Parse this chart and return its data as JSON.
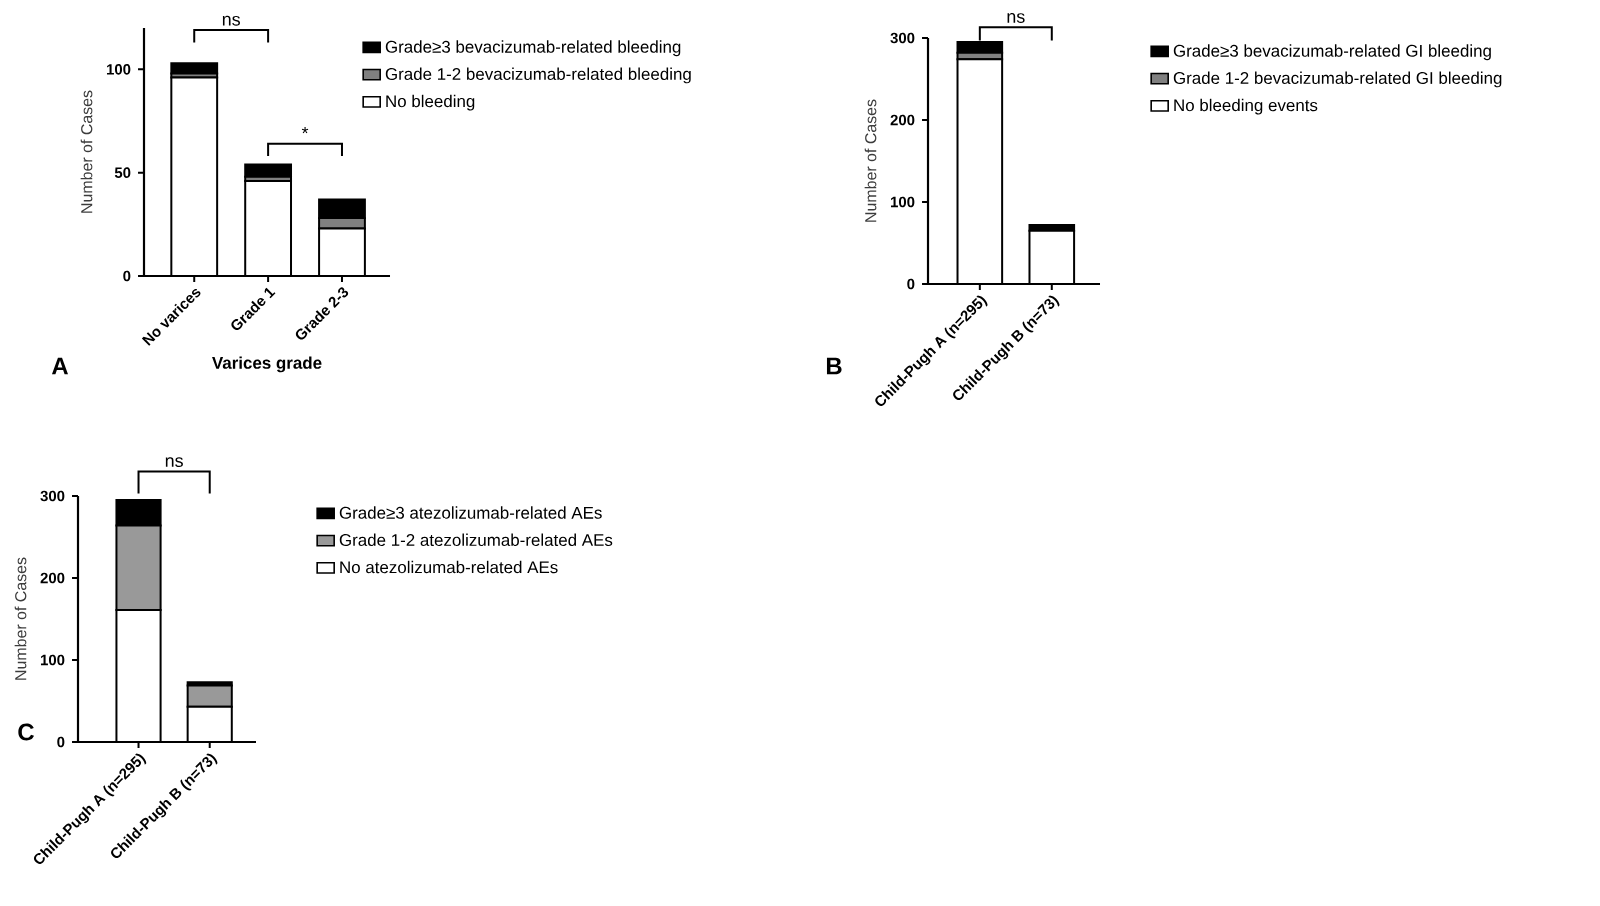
{
  "chart_data": [
    {
      "type": "bar",
      "stacked": true,
      "categories": [
        "No varices",
        "Grade 1",
        "Grade 2-3"
      ],
      "xlabel": "Varices grade",
      "ylabel": "Number of Cases",
      "ylim": [
        0,
        120
      ],
      "yticks": [
        0,
        50,
        100
      ],
      "legend": "right",
      "annotations": [
        "ns",
        "*",
        "A"
      ],
      "series": [
        {
          "name": "No bleeding",
          "color": "#ffffff",
          "values": [
            96,
            46,
            23
          ]
        },
        {
          "name": "Grade 1-2 bevacizumab-related bleeding",
          "color": "#808080",
          "values": [
            2,
            2,
            5
          ]
        },
        {
          "name": "Grade≥3 bevacizumab-related bleeding",
          "color": "#000000",
          "values": [
            5,
            6,
            9
          ]
        }
      ]
    },
    {
      "type": "bar",
      "stacked": true,
      "categories": [
        "Child-Pugh A (n=295)",
        "Child-Pugh B (n=73)"
      ],
      "ylabel": "Number of Cases",
      "ylim": [
        0,
        300
      ],
      "yticks": [
        0,
        100,
        200,
        300
      ],
      "legend": "right",
      "annotations": [
        "ns",
        "B"
      ],
      "series": [
        {
          "name": "No bleeding events",
          "color": "#ffffff",
          "values": [
            274,
            65
          ]
        },
        {
          "name": "Grade 1-2 bevacizumab-related GI bleeding",
          "color": "#808080",
          "values": [
            8,
            null
          ]
        },
        {
          "name": "Grade≥3 bevacizumab-related GI bleeding",
          "color": "#000000",
          "values": [
            13,
            7
          ]
        }
      ]
    },
    {
      "type": "bar",
      "stacked": true,
      "categories": [
        "Child-Pugh A (n=295)",
        "Child-Pugh B (n=73)"
      ],
      "ylabel": "Number of Cases",
      "ylim": [
        0,
        300
      ],
      "yticks": [
        0,
        100,
        200,
        300
      ],
      "legend": "right",
      "annotations": [
        "ns",
        "C"
      ],
      "series": [
        {
          "name": "No atezolizumab-related AEs",
          "color": "#ffffff",
          "values": [
            161,
            43
          ]
        },
        {
          "name": "Grade 1-2 atezolizumab-related AEs",
          "color": "#999999",
          "values": [
            103,
            26
          ]
        },
        {
          "name": "Grade≥3 atezolizumab-related AEs",
          "color": "#000000",
          "values": [
            31,
            4
          ]
        }
      ]
    }
  ]
}
